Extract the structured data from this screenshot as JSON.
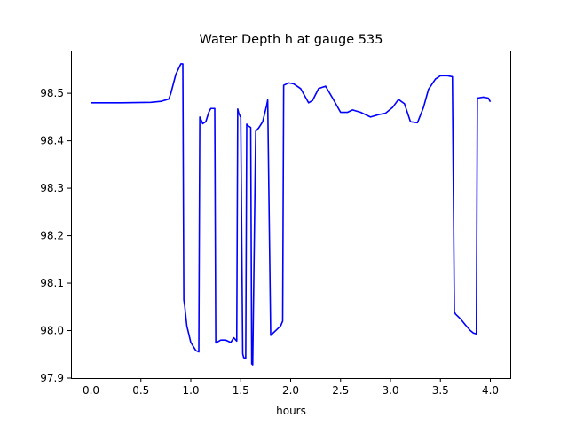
{
  "chart_data": {
    "type": "line",
    "title": "Water Depth h at gauge 535",
    "xlabel": "hours",
    "ylabel": "",
    "xlim": [
      -0.2,
      4.2
    ],
    "ylim": [
      97.9,
      98.59
    ],
    "x_ticks": [
      0.0,
      0.5,
      1.0,
      1.5,
      2.0,
      2.5,
      3.0,
      3.5,
      4.0
    ],
    "x_tick_labels": [
      "0.0",
      "0.5",
      "1.0",
      "1.5",
      "2.0",
      "2.5",
      "3.0",
      "3.5",
      "4.0"
    ],
    "y_ticks": [
      97.9,
      98.0,
      98.1,
      98.2,
      98.3,
      98.4,
      98.5
    ],
    "y_tick_labels": [
      "97.9",
      "98.0",
      "98.1",
      "98.2",
      "98.3",
      "98.4",
      "98.5"
    ],
    "grid": false,
    "series": [
      {
        "color": "#0000ff",
        "x": [
          0.0,
          0.3,
          0.6,
          0.7,
          0.78,
          0.8,
          0.85,
          0.9,
          0.92,
          0.93,
          0.94,
          0.96,
          1.0,
          1.05,
          1.08,
          1.09,
          1.12,
          1.15,
          1.18,
          1.2,
          1.24,
          1.25,
          1.3,
          1.35,
          1.4,
          1.43,
          1.46,
          1.47,
          1.48,
          1.5,
          1.52,
          1.53,
          1.55,
          1.56,
          1.57,
          1.6,
          1.61,
          1.62,
          1.65,
          1.68,
          1.72,
          1.76,
          1.77,
          1.8,
          1.85,
          1.9,
          1.92,
          1.93,
          1.98,
          2.03,
          2.1,
          2.18,
          2.22,
          2.28,
          2.35,
          2.42,
          2.5,
          2.57,
          2.62,
          2.7,
          2.8,
          2.88,
          2.95,
          3.02,
          3.08,
          3.14,
          3.2,
          3.27,
          3.33,
          3.38,
          3.45,
          3.5,
          3.57,
          3.62,
          3.64,
          3.65,
          3.7,
          3.75,
          3.8,
          3.83,
          3.86,
          3.87,
          3.93,
          3.98,
          4.0
        ],
        "y": [
          98.48,
          98.48,
          98.481,
          98.483,
          98.488,
          98.5,
          98.54,
          98.562,
          98.562,
          98.065,
          98.05,
          98.01,
          97.975,
          97.958,
          97.955,
          98.45,
          98.436,
          98.44,
          98.46,
          98.468,
          98.468,
          97.974,
          97.98,
          97.98,
          97.975,
          97.985,
          97.978,
          98.467,
          98.458,
          98.449,
          97.951,
          97.943,
          97.942,
          98.435,
          98.432,
          98.428,
          97.93,
          97.928,
          98.42,
          98.427,
          98.44,
          98.475,
          98.486,
          97.99,
          98.0,
          98.01,
          98.02,
          98.517,
          98.522,
          98.52,
          98.51,
          98.48,
          98.485,
          98.51,
          98.515,
          98.49,
          98.46,
          98.46,
          98.465,
          98.46,
          98.45,
          98.455,
          98.458,
          98.47,
          98.487,
          98.478,
          98.44,
          98.438,
          98.47,
          98.508,
          98.53,
          98.537,
          98.537,
          98.535,
          98.04,
          98.035,
          98.025,
          98.012,
          98.0,
          97.995,
          97.993,
          98.49,
          98.492,
          98.49,
          98.482
        ]
      }
    ]
  }
}
